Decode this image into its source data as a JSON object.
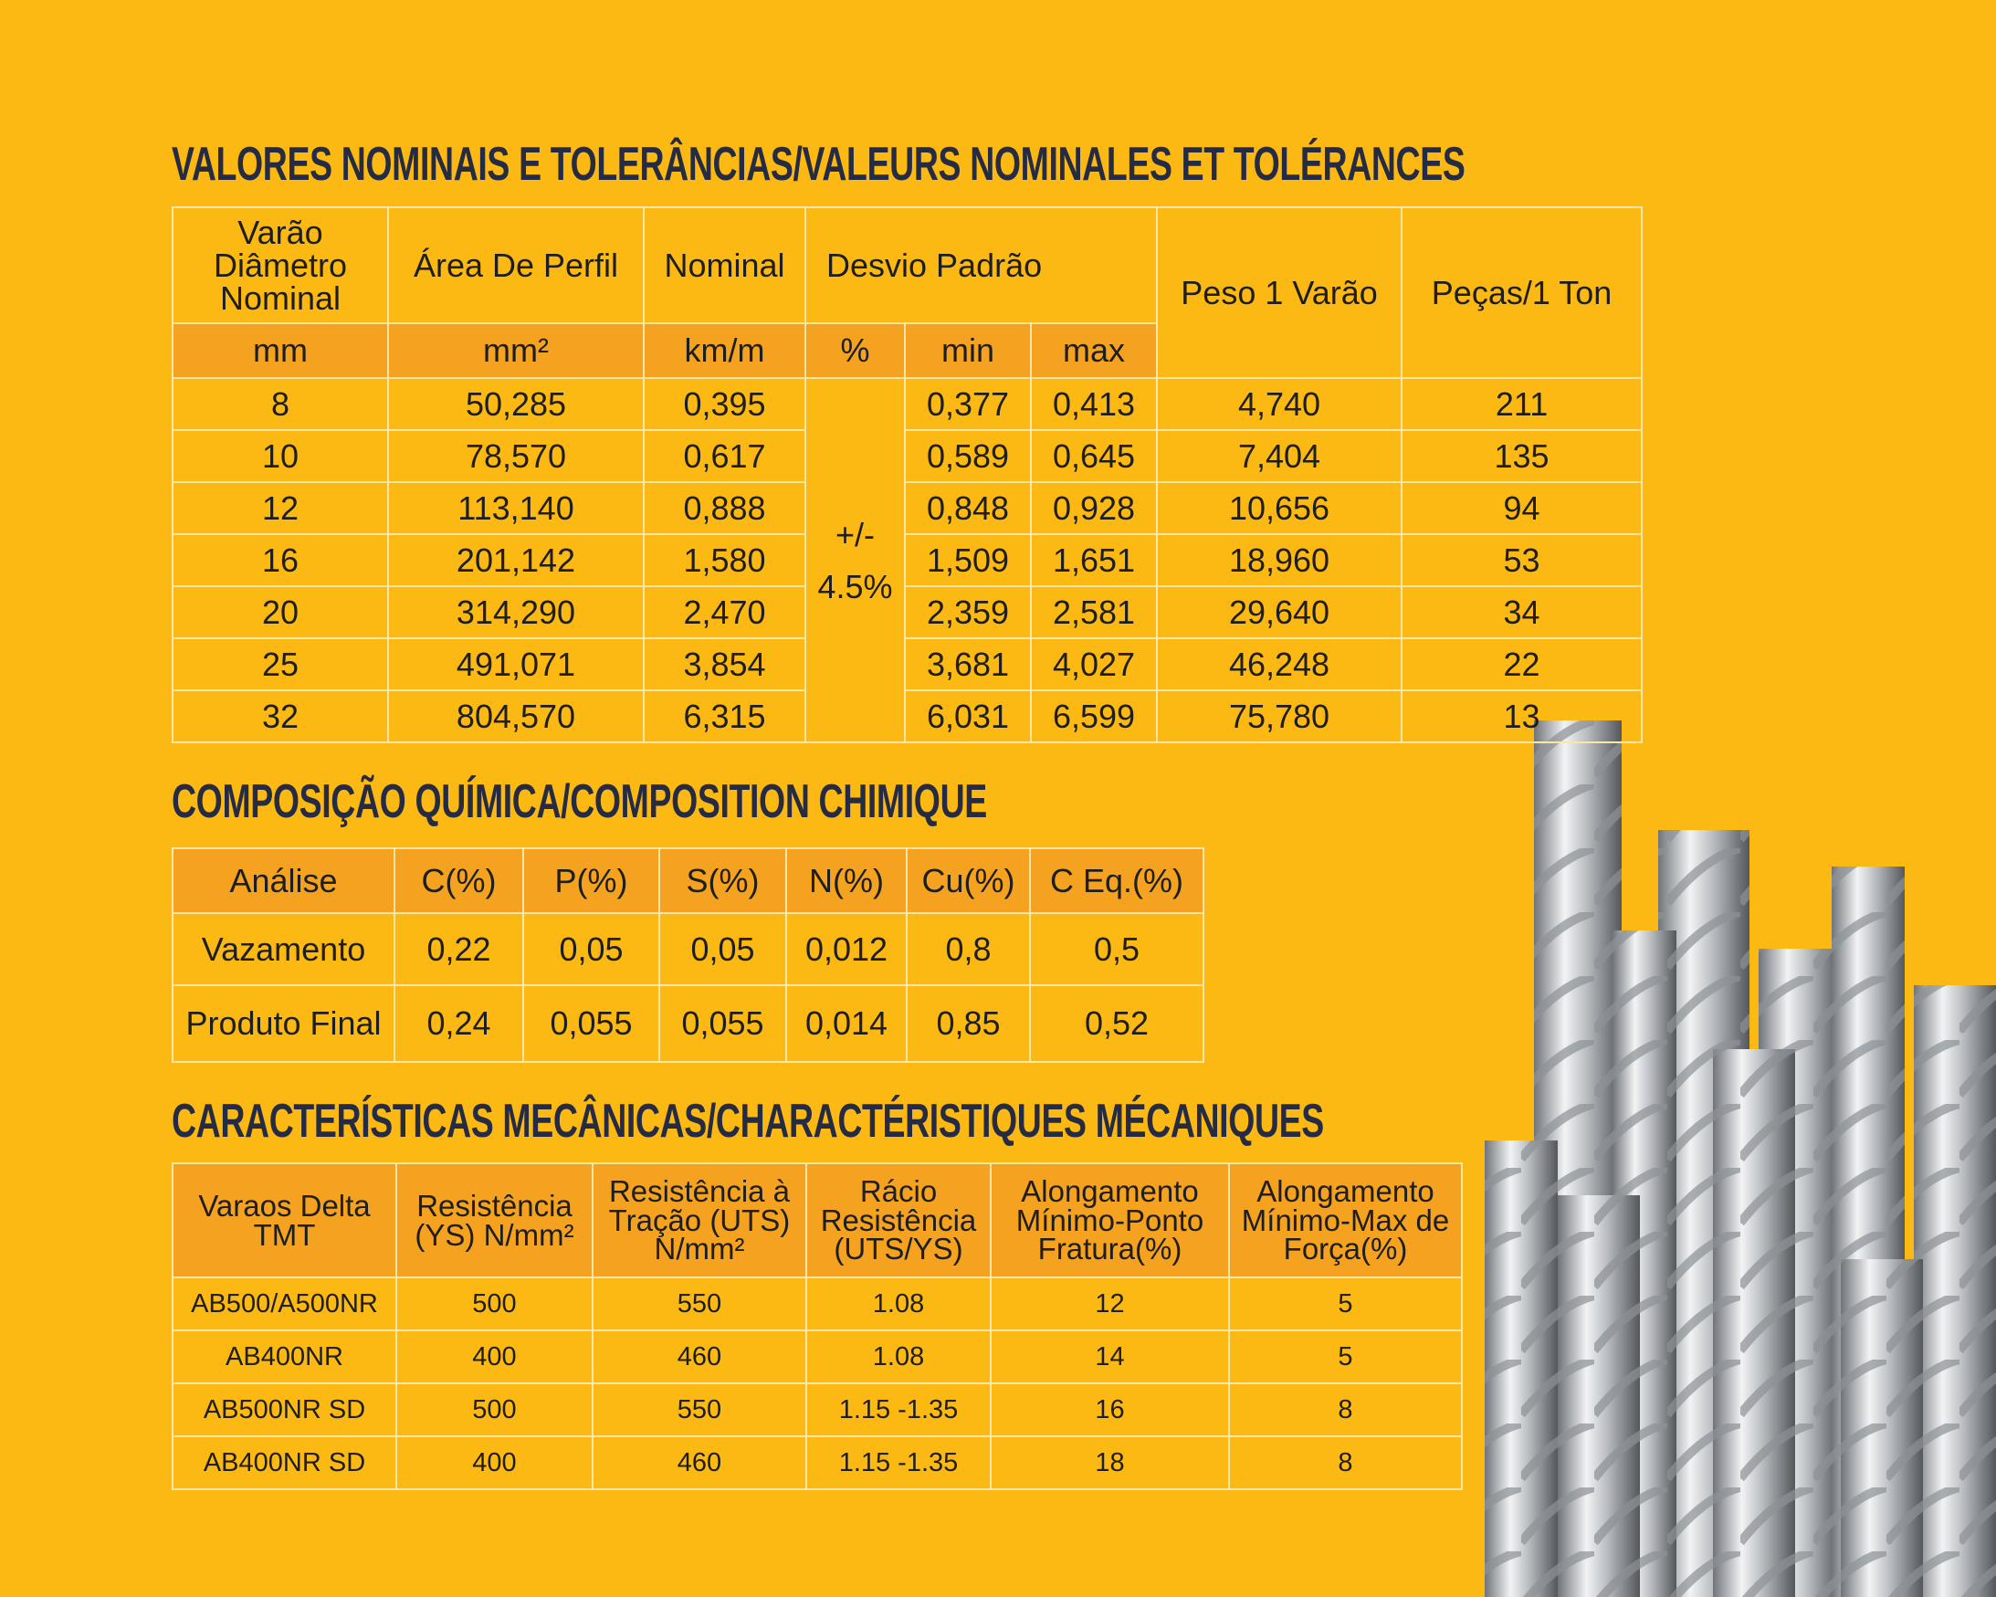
{
  "sections": [
    {
      "title": "VALORES NOMINAIS E TOLERÂNCIAS/VALEURS NOMINALES ET TOLÉRANCES",
      "table": {
        "header_row1": [
          "Varão Diâmetro Nominal",
          "Área De Perfil",
          "Nominal",
          "Desvio Padrão",
          "Peso 1 Varão",
          "Peças/1 Ton"
        ],
        "header_row2": [
          "mm",
          "mm²",
          "km/m",
          "%",
          "min",
          "max"
        ],
        "tolerance": [
          "+/-",
          "4.5%"
        ],
        "rows": [
          [
            8,
            "50,285",
            "0,395",
            "0,377",
            "0,413",
            "4,740",
            211
          ],
          [
            10,
            "78,570",
            "0,617",
            "0,589",
            "0,645",
            "7,404",
            135
          ],
          [
            12,
            "113,140",
            "0,888",
            "0,848",
            "0,928",
            "10,656",
            94
          ],
          [
            16,
            "201,142",
            "1,580",
            "1,509",
            "1,651",
            "18,960",
            53
          ],
          [
            20,
            "314,290",
            "2,470",
            "2,359",
            "2,581",
            "29,640",
            34
          ],
          [
            25,
            "491,071",
            "3,854",
            "3,681",
            "4,027",
            "46,248",
            22
          ],
          [
            32,
            "804,570",
            "6,315",
            "6,031",
            "6,599",
            "75,780",
            13
          ]
        ]
      }
    },
    {
      "title": "COMPOSIÇÃO QUÍMICA/COMPOSITION CHIMIQUE",
      "table": {
        "header": [
          "Análise",
          "C(%)",
          "P(%)",
          "S(%)",
          "N(%)",
          "Cu(%)",
          "C Eq.(%)"
        ],
        "rows": [
          [
            "Vazamento",
            "0,22",
            "0,05",
            "0,05",
            "0,012",
            "0,8",
            "0,5"
          ],
          [
            "Produto Final",
            "0,24",
            "0,055",
            "0,055",
            "0,014",
            "0,85",
            "0,52"
          ]
        ]
      }
    },
    {
      "title": "CARACTERÍSTICAS MECÂNICAS/CHARACTÉRISTIQUES MÉCANIQUES",
      "table": {
        "header": [
          "Varaos Delta TMT",
          "Resistência (YS) N/mm²",
          "Resistência à Tração (UTS) N/mm²",
          "Rácio Resistência (UTS/YS)",
          "Alongamento Mínimo-Ponto Fratura(%)",
          "Alongamento Mínimo-Max de Força(%)"
        ],
        "rows": [
          [
            "AB500/A500NR",
            500,
            550,
            "1.08",
            12,
            5
          ],
          [
            "AB400NR",
            400,
            460,
            "1.08",
            14,
            5
          ],
          [
            "AB500NR SD",
            500,
            550,
            "1.15 -1.35",
            16,
            8
          ],
          [
            "AB400NR SD",
            400,
            460,
            "1.15 -1.35",
            18,
            8
          ]
        ]
      }
    }
  ]
}
